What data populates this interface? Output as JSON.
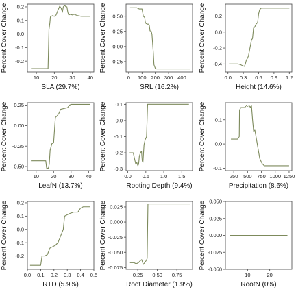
{
  "figure": {
    "line_color": "#7d8a5c"
  },
  "chart_data": [
    {
      "type": "line",
      "xlabel": "SLA  (29.7%)",
      "ylabel": "Percent Cover Change",
      "xlim": [
        5,
        42
      ],
      "ylim": [
        -0.28,
        0.22
      ],
      "xticks": [
        10,
        20,
        30,
        40
      ],
      "yticks": [
        -0.2,
        -0.1,
        0.0,
        0.1,
        0.2
      ],
      "x": [
        7,
        12,
        16.5,
        17,
        17.5,
        17.8,
        18.2,
        19,
        20,
        21,
        22,
        23,
        23.8,
        24.5,
        25,
        25.8,
        26.5,
        27,
        27.5,
        28,
        29,
        30,
        31,
        33,
        35,
        38,
        40
      ],
      "y": [
        -0.255,
        -0.255,
        -0.255,
        0.03,
        0.08,
        0.125,
        0.13,
        0.135,
        0.13,
        0.14,
        0.175,
        0.205,
        0.19,
        0.16,
        0.2,
        0.21,
        0.2,
        0.2,
        0.16,
        0.14,
        0.145,
        0.14,
        0.145,
        0.135,
        0.13,
        0.13,
        0.13
      ]
    },
    {
      "type": "line",
      "xlabel": "SRL  (16.2%)",
      "ylabel": "Percent Cover Change",
      "xlim": [
        -20,
        480
      ],
      "ylim": [
        -0.42,
        0.7
      ],
      "xticks": [
        0,
        100,
        200,
        300,
        400
      ],
      "yticks": [
        -0.25,
        0.0,
        0.25,
        0.5
      ],
      "x": [
        10,
        60,
        70,
        80,
        100,
        110,
        120,
        125,
        130,
        140,
        150,
        155,
        160,
        170,
        175,
        180,
        185,
        190,
        200,
        210,
        230,
        300,
        400,
        460
      ],
      "y": [
        0.64,
        0.64,
        0.63,
        0.62,
        0.62,
        0.5,
        0.48,
        0.4,
        0.38,
        0.37,
        0.37,
        0.35,
        0.26,
        0.25,
        0.2,
        0.05,
        -0.1,
        -0.3,
        -0.36,
        -0.37,
        -0.37,
        -0.37,
        -0.37,
        -0.37
      ]
    },
    {
      "type": "line",
      "xlabel": "Height  (14.6%)",
      "ylabel": "Percent Cover Change",
      "xlim": [
        -0.05,
        1.25
      ],
      "ylim": [
        -0.5,
        0.35
      ],
      "xticks": [
        0.0,
        0.3,
        0.6,
        0.9,
        1.2
      ],
      "yticks": [
        -0.4,
        -0.2,
        0.0,
        0.2
      ],
      "x": [
        0.02,
        0.1,
        0.2,
        0.25,
        0.28,
        0.32,
        0.34,
        0.36,
        0.38,
        0.4,
        0.43,
        0.46,
        0.48,
        0.5,
        0.52,
        0.55,
        0.58,
        0.6,
        0.62,
        0.65,
        0.7,
        0.8,
        0.9,
        1.0,
        1.1,
        1.2
      ],
      "y": [
        -0.4,
        -0.4,
        -0.4,
        -0.41,
        -0.42,
        -0.43,
        -0.4,
        -0.35,
        -0.33,
        -0.3,
        -0.2,
        -0.1,
        -0.08,
        0.05,
        0.06,
        0.1,
        0.12,
        0.23,
        0.28,
        0.3,
        0.3,
        0.3,
        0.3,
        0.3,
        0.3,
        0.3
      ]
    },
    {
      "type": "line",
      "xlabel": "LeafN  (13.7%)",
      "ylabel": "Percent Cover Change",
      "xlim": [
        5,
        43
      ],
      "ylim": [
        -0.55,
        0.28
      ],
      "xticks": [
        10,
        20,
        30,
        40
      ],
      "yticks": [
        -0.5,
        -0.25,
        0.0,
        0.25
      ],
      "x": [
        7,
        11,
        14,
        15.5,
        16,
        16.5,
        17,
        17.5,
        18,
        19,
        20,
        20.5,
        21,
        22,
        23,
        24,
        26,
        28,
        29,
        30,
        32,
        35,
        38,
        41
      ],
      "y": [
        -0.43,
        -0.43,
        -0.43,
        -0.43,
        -0.52,
        -0.52,
        -0.52,
        -0.47,
        -0.3,
        -0.22,
        -0.21,
        -0.05,
        0.1,
        0.12,
        0.15,
        0.2,
        0.21,
        0.22,
        0.25,
        0.26,
        0.26,
        0.26,
        0.26,
        0.26
      ]
    },
    {
      "type": "line",
      "xlabel": "Rooting Depth  (9.4%)",
      "ylabel": "Percent Cover Change",
      "xlim": [
        -0.05,
        1.8
      ],
      "ylim": [
        -0.31,
        0.11
      ],
      "xticks": [
        0.0,
        0.5,
        1.0,
        1.5
      ],
      "yticks": [
        -0.3,
        -0.2,
        -0.1,
        0.0,
        0.1
      ],
      "x": [
        0.05,
        0.15,
        0.2,
        0.22,
        0.25,
        0.28,
        0.3,
        0.32,
        0.35,
        0.38,
        0.4,
        0.42,
        0.45,
        0.48,
        0.52,
        0.55,
        0.6,
        0.8,
        1.0,
        1.3,
        1.7
      ],
      "y": [
        -0.2,
        -0.2,
        -0.25,
        -0.27,
        -0.26,
        -0.28,
        -0.27,
        -0.22,
        -0.2,
        -0.19,
        -0.25,
        -0.26,
        -0.15,
        -0.12,
        -0.1,
        0.1,
        0.1,
        0.1,
        0.1,
        0.1,
        0.1
      ]
    },
    {
      "type": "line",
      "xlabel": "Precipitation  (8.6%)",
      "ylabel": "Percent Cover Change",
      "xlim": [
        100,
        1300
      ],
      "ylim": [
        -0.11,
        0.17
      ],
      "xticks": [
        250,
        500,
        750,
        1000,
        1250
      ],
      "xticklabels": [
        "250",
        "500",
        "750",
        "1000",
        "1250"
      ],
      "yticks": [
        -0.1,
        0.0,
        0.1
      ],
      "x": [
        200,
        320,
        350,
        355,
        380,
        400,
        450,
        480,
        500,
        530,
        550,
        570,
        590,
        610,
        630,
        660,
        690,
        720,
        760,
        800,
        900,
        1000,
        1100,
        1250
      ],
      "y": [
        0.02,
        0.02,
        0.03,
        0.14,
        0.15,
        0.15,
        0.15,
        0.16,
        0.155,
        0.16,
        0.15,
        0.16,
        0.1,
        0.05,
        0.06,
        0.02,
        -0.02,
        -0.06,
        -0.08,
        -0.09,
        -0.09,
        -0.09,
        -0.09,
        -0.09
      ]
    },
    {
      "type": "line",
      "xlabel": "RTD  (5.9%)",
      "ylabel": "Percent Cover Change",
      "xlim": [
        0.0,
        0.5
      ],
      "ylim": [
        -0.3,
        0.21
      ],
      "xticks": [
        0.0,
        0.1,
        0.2,
        0.3,
        0.4,
        0.5
      ],
      "yticks": [
        -0.2,
        -0.1,
        0.0,
        0.1,
        0.2
      ],
      "x": [
        0.02,
        0.07,
        0.1,
        0.11,
        0.13,
        0.15,
        0.17,
        0.19,
        0.21,
        0.23,
        0.25,
        0.27,
        0.28,
        0.3,
        0.32,
        0.35,
        0.38,
        0.4,
        0.42,
        0.44,
        0.47
      ],
      "y": [
        -0.27,
        -0.27,
        -0.27,
        -0.2,
        -0.2,
        -0.19,
        -0.14,
        -0.13,
        -0.12,
        -0.1,
        -0.05,
        0.0,
        0.1,
        0.11,
        0.12,
        0.13,
        0.13,
        0.16,
        0.17,
        0.17,
        0.17
      ]
    },
    {
      "type": "line",
      "xlabel": "Root Diameter  (1.9%)",
      "ylabel": "Percent Cover Change",
      "xlim": [
        0.1,
        0.95
      ],
      "ylim": [
        -0.078,
        0.034
      ],
      "xticks": [
        0.25,
        0.5,
        0.75
      ],
      "yticks": [
        -0.075,
        -0.05,
        -0.025,
        0.0,
        0.025
      ],
      "x": [
        0.15,
        0.2,
        0.23,
        0.26,
        0.28,
        0.3,
        0.32,
        0.35,
        0.36,
        0.37,
        0.38,
        0.4,
        0.45,
        0.55,
        0.7,
        0.92
      ],
      "y": [
        -0.067,
        -0.067,
        -0.069,
        -0.067,
        -0.064,
        -0.062,
        -0.07,
        -0.065,
        -0.063,
        -0.06,
        0.03,
        0.03,
        0.03,
        0.03,
        0.03,
        0.03
      ]
    },
    {
      "type": "line",
      "xlabel": "RootN  (0%)",
      "ylabel": "Percent Cover Change",
      "xlim": [
        0,
        30
      ],
      "ylim": [
        -0.05,
        0.05
      ],
      "xticks": [
        10,
        20
      ],
      "yticks": [
        -0.05,
        -0.025,
        0.0,
        0.025,
        0.05
      ],
      "x": [
        2,
        28
      ],
      "y": [
        0.0,
        0.0
      ]
    }
  ]
}
